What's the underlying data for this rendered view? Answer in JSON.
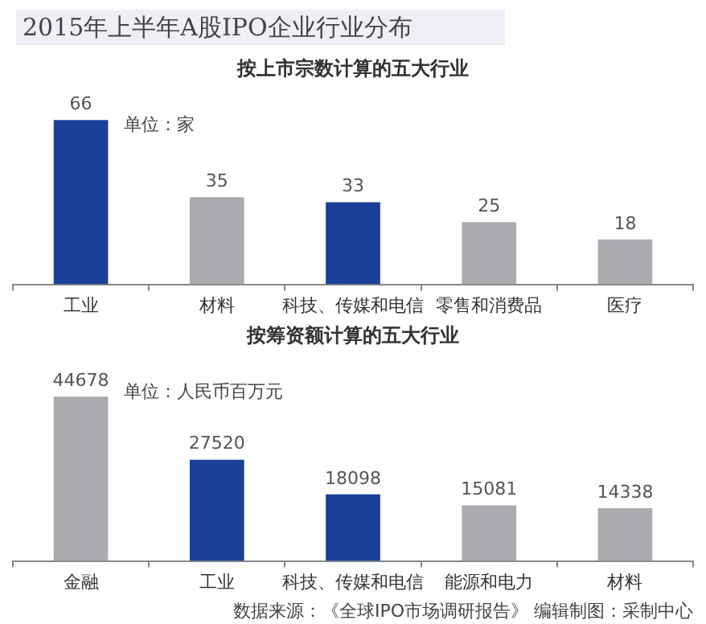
{
  "chart_data": [
    {
      "type": "bar",
      "title": "2015年上半年A股IPO企业行业分布",
      "subtitle": "按上市宗数计算的五大行业",
      "categories": [
        "工业",
        "材料",
        "科技、传媒和电信",
        "零售和消费品",
        "医疗"
      ],
      "values": [
        66,
        35,
        33,
        25,
        18
      ],
      "colors": [
        "#1a4197",
        "#aaabaf",
        "#1a4197",
        "#aaabaf",
        "#aaabaf"
      ],
      "data_labels": true,
      "annotations": [
        "单位：家"
      ],
      "legend": false,
      "grid": false,
      "tick_labels": "x"
    },
    {
      "type": "bar",
      "title": "按筹资额计算的五大行业",
      "categories": [
        "金融",
        "工业",
        "科技、传媒和电信",
        "能源和电力",
        "材料"
      ],
      "values": [
        44678,
        27520,
        18098,
        15081,
        14338
      ],
      "colors": [
        "#aaabaf",
        "#1a4197",
        "#1a4197",
        "#aaabaf",
        "#aaabaf"
      ],
      "data_labels": true,
      "annotations": [
        "单位：人民币百万元",
        "数据来源：《全球IPO市场调研报告》 编辑制图：采制中心"
      ],
      "legend": false,
      "grid": false,
      "tick_labels": "x"
    }
  ]
}
